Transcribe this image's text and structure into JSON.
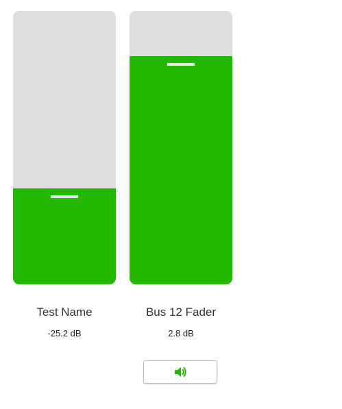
{
  "faders": [
    {
      "name": "Test Name",
      "value_text": "-25.2 dB",
      "level_fraction": 0.35
    },
    {
      "name": "Bus 12 Fader",
      "value_text": "2.8 dB",
      "level_fraction": 0.835
    }
  ],
  "mute_button": {
    "icon": "speaker-volume-icon",
    "color": "#22b900"
  },
  "colors": {
    "fill": "#22b900",
    "track": "#dedede",
    "thumb": "#e7e7e7"
  }
}
